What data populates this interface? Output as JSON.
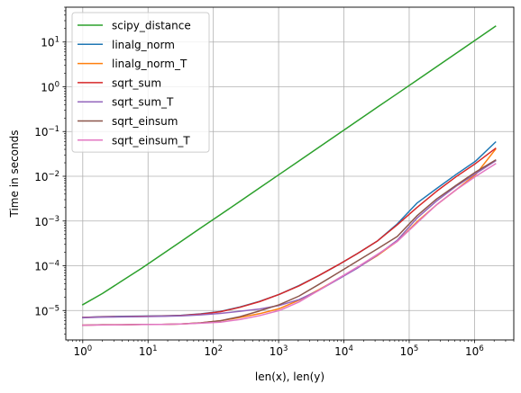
{
  "chart_data": {
    "type": "line",
    "xlabel": "len(x), len(y)",
    "ylabel": "Time in seconds",
    "xscale": "log",
    "yscale": "log",
    "xlim": [
      0.55,
      4000000
    ],
    "ylim": [
      2.2e-06,
      60
    ],
    "grid": true,
    "legend_position": "top-left",
    "x_ticks": [
      {
        "value": 1,
        "base": "10",
        "exp": "0"
      },
      {
        "value": 10,
        "base": "10",
        "exp": "1"
      },
      {
        "value": 100,
        "base": "10",
        "exp": "2"
      },
      {
        "value": 1000,
        "base": "10",
        "exp": "3"
      },
      {
        "value": 10000,
        "base": "10",
        "exp": "4"
      },
      {
        "value": 100000,
        "base": "10",
        "exp": "5"
      },
      {
        "value": 1000000,
        "base": "10",
        "exp": "6"
      }
    ],
    "y_ticks": [
      {
        "value": 1e-05,
        "base": "10",
        "exp": "−5"
      },
      {
        "value": 0.0001,
        "base": "10",
        "exp": "−4"
      },
      {
        "value": 0.001,
        "base": "10",
        "exp": "−3"
      },
      {
        "value": 0.01,
        "base": "10",
        "exp": "−2"
      },
      {
        "value": 0.1,
        "base": "10",
        "exp": "−1"
      },
      {
        "value": 1,
        "base": "10",
        "exp": "0"
      },
      {
        "value": 10,
        "base": "10",
        "exp": "1"
      }
    ],
    "x": [
      1,
      2,
      4,
      8,
      16,
      32,
      64,
      128,
      256,
      512,
      1024,
      2048,
      4096,
      8192,
      16384,
      32768,
      65536,
      131072,
      262144,
      524288,
      1048576,
      2097152
    ],
    "series": [
      {
        "name": "scipy_distance",
        "color": "#2ca02c",
        "values": [
          1.35e-05,
          2.4e-05,
          4.6e-05,
          8.8e-05,
          0.000175,
          0.00035,
          0.0007,
          0.00138,
          0.00275,
          0.0055,
          0.011,
          0.022,
          0.044,
          0.088,
          0.176,
          0.352,
          0.7,
          1.4,
          2.8,
          5.6,
          11.2,
          22.5
        ]
      },
      {
        "name": "linalg_norm",
        "color": "#1f77b4",
        "values": [
          7e-06,
          7.3e-06,
          7.4e-06,
          7.5e-06,
          7.6e-06,
          7.8e-06,
          8.4e-06,
          9.5e-06,
          1.2e-05,
          1.6e-05,
          2.3e-05,
          3.6e-05,
          6e-05,
          0.000105,
          0.00019,
          0.00036,
          0.00086,
          0.0025,
          0.0053,
          0.011,
          0.022,
          0.058
        ]
      },
      {
        "name": "linalg_norm_T",
        "color": "#ff7f0e",
        "values": [
          4.7e-06,
          4.8e-06,
          4.8e-06,
          4.9e-06,
          4.9e-06,
          5e-06,
          5.3e-06,
          5.9e-06,
          7e-06,
          8.5e-06,
          1.1e-05,
          1.7e-05,
          2.9e-05,
          5.1e-05,
          9.2e-05,
          0.00017,
          0.00035,
          0.00095,
          0.0023,
          0.005,
          0.011,
          0.04
        ]
      },
      {
        "name": "sqrt_sum",
        "color": "#d62728",
        "values": [
          7e-06,
          7.2e-06,
          7.3e-06,
          7.4e-06,
          7.5e-06,
          7.7e-06,
          8.3e-06,
          9.4e-06,
          1.18e-05,
          1.58e-05,
          2.3e-05,
          3.55e-05,
          6e-05,
          0.000105,
          0.00019,
          0.00036,
          0.00082,
          0.002,
          0.0046,
          0.0098,
          0.0195,
          0.042
        ]
      },
      {
        "name": "sqrt_sum_T",
        "color": "#9467bd",
        "values": [
          6.9e-06,
          7.1e-06,
          7.2e-06,
          7.3e-06,
          7.4e-06,
          7.6e-06,
          8e-06,
          8.6e-06,
          9.6e-06,
          1.08e-05,
          1.3e-05,
          1.75e-05,
          2.8e-05,
          5e-05,
          9e-05,
          0.000175,
          0.00037,
          0.00115,
          0.0028,
          0.006,
          0.0115,
          0.022
        ]
      },
      {
        "name": "sqrt_einsum",
        "color": "#8c564b",
        "values": [
          4.7e-06,
          4.8e-06,
          4.8e-06,
          4.9e-06,
          4.9e-06,
          5e-06,
          5.3e-06,
          5.9e-06,
          7.3e-06,
          9.8e-06,
          1.35e-05,
          2.1e-05,
          3.8e-05,
          7e-05,
          0.00013,
          0.00024,
          0.00045,
          0.0013,
          0.0031,
          0.0063,
          0.0125,
          0.023
        ]
      },
      {
        "name": "sqrt_einsum_T",
        "color": "#e377c2",
        "values": [
          4.7e-06,
          4.75e-06,
          4.8e-06,
          4.85e-06,
          4.9e-06,
          5e-06,
          5.2e-06,
          5.5e-06,
          6.3e-06,
          7.7e-06,
          1e-05,
          1.55e-05,
          2.8e-05,
          5.2e-05,
          9.5e-05,
          0.00018,
          0.00035,
          0.0009,
          0.0023,
          0.005,
          0.01,
          0.019
        ]
      }
    ]
  }
}
